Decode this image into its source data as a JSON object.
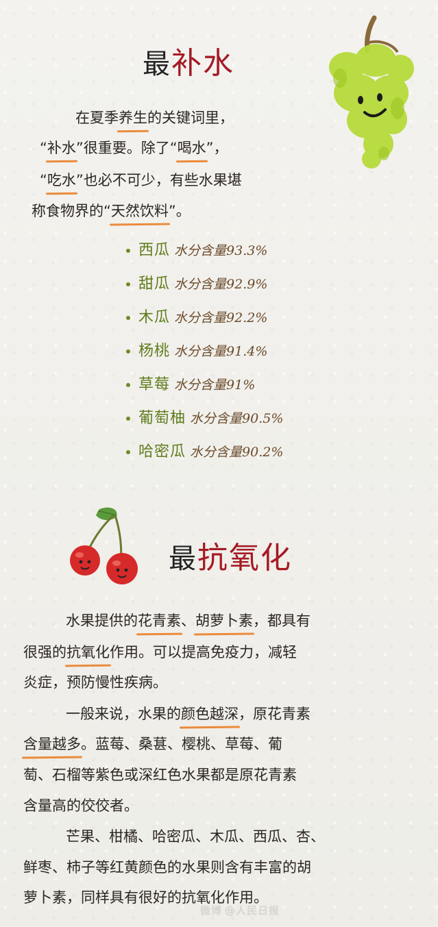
{
  "section1": {
    "title_plain": "最",
    "title_accent": "补水",
    "para": {
      "l1a": "在夏季",
      "l1b": "养生",
      "l1c": "的关键词里，",
      "l2a": "“",
      "l2b": "补水",
      "l2c": "”很重要。除了“",
      "l2d": "喝水",
      "l2e": "”，",
      "l3a": "“",
      "l3b": "吃水",
      "l3c": "”也必不可少，有些水果堪",
      "l4a": "称食物界的“",
      "l4b": "天然饮料",
      "l4c": "”。"
    },
    "water_list": [
      {
        "fruit": "西瓜",
        "value": "水分含量93.3%"
      },
      {
        "fruit": "甜瓜",
        "value": "水分含量92.9%"
      },
      {
        "fruit": "木瓜",
        "value": "水分含量92.2%"
      },
      {
        "fruit": "杨桃",
        "value": "水分含量91.4%"
      },
      {
        "fruit": "草莓",
        "value": "水分含量91%"
      },
      {
        "fruit": "葡萄柚",
        "value": "水分含量90.5%"
      },
      {
        "fruit": "哈密瓜",
        "value": "水分含量90.2%"
      }
    ]
  },
  "section2": {
    "title_plain": "最",
    "title_accent": "抗氧化",
    "p1": {
      "l1a": "水果提供的",
      "l1b": "花青素",
      "l1c": "、",
      "l1d": "胡萝卜素",
      "l1e": "，都具有",
      "l2a": "很强的",
      "l2b": "抗氧化",
      "l2c": "作用。可以提高免疫力，减轻",
      "l3": "炎症，预防慢性疾病。"
    },
    "p2": {
      "l1a": "一般来说，水果的",
      "l1b": "颜色越深",
      "l1c": "，原花青素",
      "l2a": "含量越多",
      "l2b": "。蓝莓、桑葚、樱桃、草莓、葡",
      "l3": "萄、石榴等紫色或深红色水果都是原花青素",
      "l4": "含量高的佼佼者。"
    },
    "p3": {
      "l1": "芒果、柑橘、哈密瓜、木瓜、西瓜、杏、",
      "l2": "鲜枣、柿子等红黄颜色的水果则含有丰富的胡",
      "l3": "萝卜素，同样具有很好的抗氧化作用。"
    }
  },
  "watermark": {
    "logo": "微博",
    "text": "@人民日报"
  },
  "colors": {
    "accent": "#a51a24",
    "underline": "#ea8b3c",
    "fruit_green": "#5f7c1c"
  },
  "icons": {
    "grape": "grape-illustration",
    "cherry": "cherry-illustration"
  }
}
